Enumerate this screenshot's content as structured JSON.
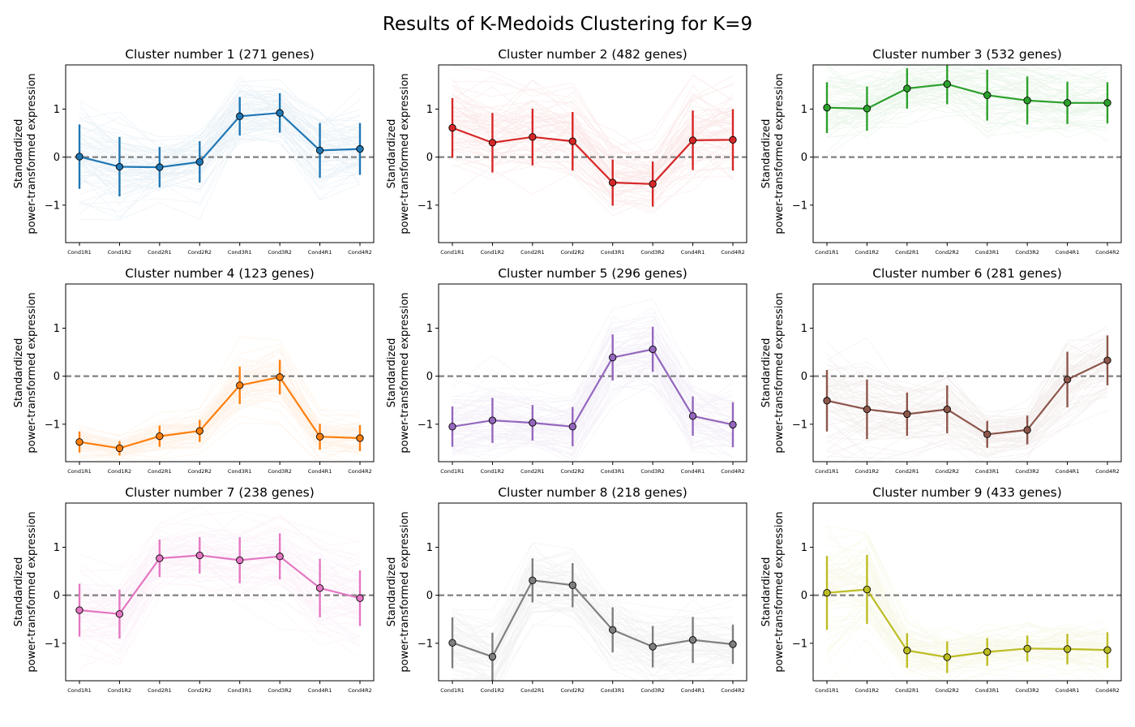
{
  "figure_title": "Results of K-Medoids Clustering for K=9",
  "ylabel_line1": "Standardized",
  "ylabel_line2": "power-transformed expression",
  "chart_data": [
    {
      "type": "line",
      "title": "Cluster number 1 (271 genes)",
      "color": "#1f77b4",
      "categories": [
        "Cond1R1",
        "Cond1R2",
        "Cond2R1",
        "Cond2R2",
        "Cond3R1",
        "Cond3R2",
        "Cond4R1",
        "Cond4R2"
      ],
      "mean": [
        0.01,
        -0.2,
        -0.21,
        -0.1,
        0.85,
        0.92,
        0.14,
        0.17
      ],
      "error": [
        0.67,
        0.62,
        0.42,
        0.43,
        0.4,
        0.41,
        0.57,
        0.54
      ],
      "yticks": [
        -1,
        0,
        1
      ],
      "ylim": [
        -1.78,
        1.92
      ],
      "reference_line": 0
    },
    {
      "type": "line",
      "title": "Cluster number 2 (482 genes)",
      "color": "#d62728",
      "categories": [
        "Cond1R1",
        "Cond1R2",
        "Cond2R1",
        "Cond2R2",
        "Cond3R1",
        "Cond3R2",
        "Cond4R1",
        "Cond4R2"
      ],
      "mean": [
        0.61,
        0.3,
        0.42,
        0.33,
        -0.53,
        -0.56,
        0.35,
        0.36
      ],
      "error": [
        0.62,
        0.62,
        0.59,
        0.61,
        0.48,
        0.47,
        0.62,
        0.64
      ],
      "yticks": [
        -1,
        0,
        1
      ],
      "ylim": [
        -1.78,
        1.92
      ],
      "reference_line": 0
    },
    {
      "type": "line",
      "title": "Cluster number 3 (532 genes)",
      "color": "#2ca02c",
      "categories": [
        "Cond1R1",
        "Cond1R2",
        "Cond2R1",
        "Cond2R2",
        "Cond3R1",
        "Cond3R2",
        "Cond4R1",
        "Cond4R2"
      ],
      "mean": [
        1.03,
        1.01,
        1.43,
        1.52,
        1.29,
        1.18,
        1.13,
        1.13
      ],
      "error": [
        0.53,
        0.46,
        0.42,
        0.42,
        0.53,
        0.5,
        0.44,
        0.43
      ],
      "yticks": [
        -1,
        0,
        1
      ],
      "ylim": [
        -1.78,
        1.92
      ],
      "reference_line": 0
    },
    {
      "type": "line",
      "title": "Cluster number 4 (123 genes)",
      "color": "#ff7f0e",
      "categories": [
        "Cond1R1",
        "Cond1R2",
        "Cond2R1",
        "Cond2R2",
        "Cond3R1",
        "Cond3R2",
        "Cond4R1",
        "Cond4R2"
      ],
      "mean": [
        -1.37,
        -1.5,
        -1.25,
        -1.14,
        -0.19,
        -0.02,
        -1.26,
        -1.29
      ],
      "error": [
        0.22,
        0.15,
        0.22,
        0.23,
        0.39,
        0.36,
        0.27,
        0.27
      ],
      "yticks": [
        -1,
        0,
        1
      ],
      "ylim": [
        -1.78,
        1.92
      ],
      "reference_line": 0
    },
    {
      "type": "line",
      "title": "Cluster number 5 (296 genes)",
      "color": "#9467bd",
      "categories": [
        "Cond1R1",
        "Cond1R2",
        "Cond2R1",
        "Cond2R2",
        "Cond3R1",
        "Cond3R2",
        "Cond4R1",
        "Cond4R2"
      ],
      "mean": [
        -1.05,
        -0.92,
        -0.97,
        -1.05,
        0.39,
        0.56,
        -0.83,
        -1.01
      ],
      "error": [
        0.42,
        0.47,
        0.37,
        0.41,
        0.48,
        0.47,
        0.41,
        0.47
      ],
      "yticks": [
        -1,
        0,
        1
      ],
      "ylim": [
        -1.78,
        1.92
      ],
      "reference_line": 0
    },
    {
      "type": "line",
      "title": "Cluster number 6 (281 genes)",
      "color": "#8c564b",
      "categories": [
        "Cond1R1",
        "Cond1R2",
        "Cond2R1",
        "Cond2R2",
        "Cond3R1",
        "Cond3R2",
        "Cond4R1",
        "Cond4R2"
      ],
      "mean": [
        -0.51,
        -0.69,
        -0.79,
        -0.69,
        -1.21,
        -1.12,
        -0.07,
        0.33
      ],
      "error": [
        0.64,
        0.62,
        0.45,
        0.5,
        0.28,
        0.3,
        0.58,
        0.52
      ],
      "yticks": [
        -1,
        0,
        1
      ],
      "ylim": [
        -1.78,
        1.92
      ],
      "reference_line": 0
    },
    {
      "type": "line",
      "title": "Cluster number 7 (238 genes)",
      "color": "#e377c2",
      "categories": [
        "Cond1R1",
        "Cond1R2",
        "Cond2R1",
        "Cond2R2",
        "Cond3R1",
        "Cond3R2",
        "Cond4R1",
        "Cond4R2"
      ],
      "mean": [
        -0.31,
        -0.39,
        0.77,
        0.83,
        0.73,
        0.81,
        0.15,
        -0.06
      ],
      "error": [
        0.55,
        0.51,
        0.39,
        0.38,
        0.48,
        0.48,
        0.61,
        0.58
      ],
      "yticks": [
        -1,
        0,
        1
      ],
      "ylim": [
        -1.78,
        1.92
      ],
      "reference_line": 0
    },
    {
      "type": "line",
      "title": "Cluster number 8 (218 genes)",
      "color": "#7f7f7f",
      "categories": [
        "Cond1R1",
        "Cond1R2",
        "Cond2R1",
        "Cond2R2",
        "Cond3R1",
        "Cond3R2",
        "Cond4R1",
        "Cond4R2"
      ],
      "mean": [
        -0.99,
        -1.28,
        0.31,
        0.21,
        -0.72,
        -1.07,
        -0.93,
        -1.02
      ],
      "error": [
        0.53,
        0.5,
        0.46,
        0.46,
        0.47,
        0.43,
        0.48,
        0.41
      ],
      "yticks": [
        -1,
        0,
        1
      ],
      "ylim": [
        -1.78,
        1.92
      ],
      "reference_line": 0
    },
    {
      "type": "line",
      "title": "Cluster number 9 (433 genes)",
      "color": "#bcbd22",
      "categories": [
        "Cond1R1",
        "Cond1R2",
        "Cond2R1",
        "Cond2R2",
        "Cond3R1",
        "Cond3R2",
        "Cond4R1",
        "Cond4R2"
      ],
      "mean": [
        0.05,
        0.12,
        -1.15,
        -1.29,
        -1.18,
        -1.11,
        -1.12,
        -1.14
      ],
      "error": [
        0.77,
        0.72,
        0.36,
        0.33,
        0.29,
        0.27,
        0.32,
        0.37
      ],
      "yticks": [
        -1,
        0,
        1
      ],
      "ylim": [
        -1.78,
        1.92
      ],
      "reference_line": 0
    }
  ]
}
